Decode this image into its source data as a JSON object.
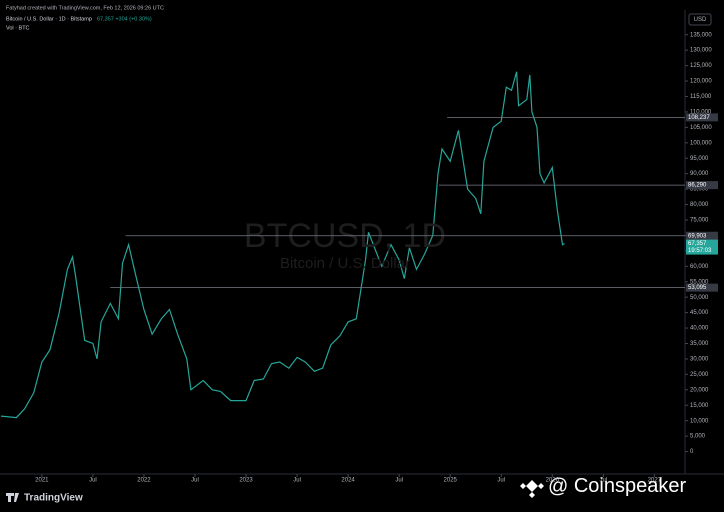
{
  "chart_data": {
    "type": "line",
    "header": "Fatyhad created with TradingView.com, Feb 12, 2026 09:26 UTC",
    "title": "Bitcoin / U.S. Dollar · 1D · Bitstamp",
    "quote": "67,357 +304 (+0.30%)",
    "volume_label": "Vol · BTC",
    "watermark": "BTCUSD, 1D",
    "watermark_subtitle": "Bitcoin / U.S. Dollar",
    "currency": "USD",
    "brand": "TradingView",
    "credit": "Coinspeaker",
    "countdown": "19:57:03",
    "x": [
      2020.6,
      2020.75,
      2020.83,
      2020.92,
      2021.0,
      2021.08,
      2021.17,
      2021.25,
      2021.3,
      2021.33,
      2021.42,
      2021.5,
      2021.54,
      2021.58,
      2021.67,
      2021.75,
      2021.79,
      2021.85,
      2021.92,
      2022.0,
      2022.08,
      2022.17,
      2022.25,
      2022.33,
      2022.42,
      2022.46,
      2022.58,
      2022.67,
      2022.75,
      2022.85,
      2023.0,
      2023.08,
      2023.17,
      2023.25,
      2023.33,
      2023.42,
      2023.5,
      2023.58,
      2023.67,
      2023.75,
      2023.83,
      2023.92,
      2024.0,
      2024.08,
      2024.17,
      2024.2,
      2024.33,
      2024.42,
      2024.5,
      2024.55,
      2024.6,
      2024.67,
      2024.75,
      2024.83,
      2024.88,
      2024.92,
      2025.0,
      2025.08,
      2025.17,
      2025.25,
      2025.3,
      2025.33,
      2025.42,
      2025.5,
      2025.55,
      2025.6,
      2025.65,
      2025.67,
      2025.75,
      2025.78,
      2025.8,
      2025.85,
      2025.88,
      2025.92,
      2026.0,
      2026.05,
      2026.1,
      2026.12
    ],
    "series": [
      {
        "name": "BTCUSD",
        "color": "#26a69a",
        "values": [
          11500,
          11000,
          13800,
          19000,
          29000,
          33000,
          45000,
          59000,
          63000,
          57000,
          36000,
          35000,
          30000,
          42000,
          48000,
          43000,
          61000,
          67000,
          57000,
          46000,
          38000,
          43000,
          46000,
          38000,
          30000,
          20000,
          23000,
          20000,
          19500,
          16500,
          16500,
          23000,
          23500,
          28500,
          29000,
          27000,
          30500,
          29000,
          26000,
          27000,
          34500,
          37500,
          42000,
          43000,
          62000,
          71000,
          60000,
          67000,
          62000,
          56000,
          66000,
          59000,
          64000,
          70000,
          90000,
          98000,
          94000,
          104000,
          85000,
          82000,
          77000,
          94000,
          105000,
          107000,
          118000,
          117000,
          123000,
          112000,
          114000,
          122000,
          110000,
          105000,
          90000,
          87000,
          92000,
          78000,
          67000,
          67357
        ]
      }
    ],
    "levels": [
      {
        "value": 108237,
        "label": "108,237",
        "start": 2024.97
      },
      {
        "value": 86290,
        "label": "86,290",
        "start": 2024.89
      },
      {
        "value": 69903,
        "label": "69,903",
        "start": 2021.82
      },
      {
        "value": 53095,
        "label": "53,095",
        "start": 2021.67
      }
    ],
    "last_price": {
      "value": 67357,
      "label": "67,357"
    },
    "xlim": [
      2020.59,
      2027.3
    ],
    "xticks": [
      {
        "value": 2021,
        "label": "2021"
      },
      {
        "value": 2021.5,
        "label": "Jul"
      },
      {
        "value": 2022,
        "label": "2022"
      },
      {
        "value": 2022.5,
        "label": "Jul"
      },
      {
        "value": 2023,
        "label": "2023"
      },
      {
        "value": 2023.5,
        "label": "Jul"
      },
      {
        "value": 2024,
        "label": "2024"
      },
      {
        "value": 2024.5,
        "label": "Jul"
      },
      {
        "value": 2025,
        "label": "2025"
      },
      {
        "value": 2025.5,
        "label": "Jul"
      },
      {
        "value": 2026,
        "label": "2026"
      },
      {
        "value": 2026.5,
        "label": "Jul"
      },
      {
        "value": 2027,
        "label": "2027"
      }
    ],
    "ylim": [
      -5000,
      137500
    ],
    "yticks": [
      0,
      {
        "value": 5000,
        "label": "5,000"
      },
      {
        "value": 10000,
        "label": "10,000"
      },
      {
        "value": 15000,
        "label": "15,000"
      },
      {
        "value": 20000,
        "label": "20,000"
      },
      {
        "value": 25000,
        "label": "25,000"
      },
      {
        "value": 30000,
        "label": "30,000"
      },
      {
        "value": 35000,
        "label": "35,000"
      },
      {
        "value": 40000,
        "label": "40,000"
      },
      {
        "value": 45000,
        "label": "45,000"
      },
      {
        "value": 50000,
        "label": "50,000"
      },
      {
        "value": 55000,
        "label": "55,000"
      },
      {
        "value": 60000,
        "label": "60,000"
      },
      {
        "value": 65000,
        "label": "65,000"
      },
      {
        "value": 70000,
        "label": "70,000"
      },
      {
        "value": 75000,
        "label": "75,000"
      },
      {
        "value": 80000,
        "label": "80,000"
      },
      {
        "value": 85000,
        "label": "85,000"
      },
      {
        "value": 90000,
        "label": "90,000"
      },
      {
        "value": 95000,
        "label": "95,000"
      },
      {
        "value": 100000,
        "label": "100,000"
      },
      {
        "value": 105000,
        "label": "105,000"
      },
      {
        "value": 110000,
        "label": "110,000"
      },
      {
        "value": 115000,
        "label": "115,000"
      },
      {
        "value": 120000,
        "label": "120,000"
      },
      {
        "value": 125000,
        "label": "125,000"
      },
      {
        "value": 130000,
        "label": "130,000"
      },
      {
        "value": 135000,
        "label": "135,000"
      }
    ],
    "grid": false
  }
}
